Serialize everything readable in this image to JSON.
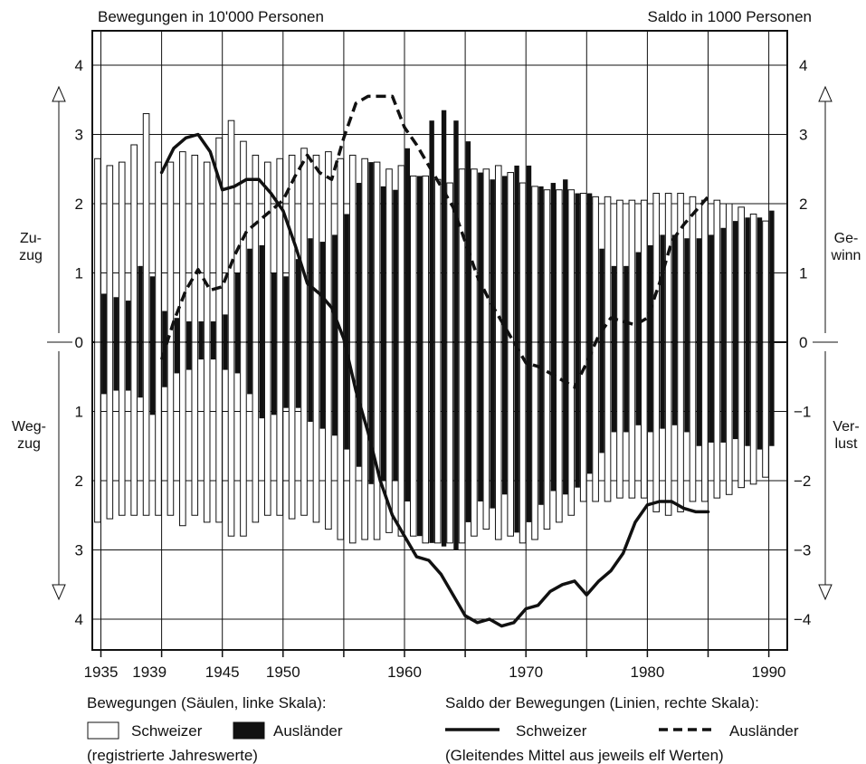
{
  "chart_data": {
    "type": "bar",
    "left_axis_label": "Bewegungen in 10'000 Personen",
    "right_axis_label": "Saldo in 1000 Personen",
    "left_ticks_up": [
      "4",
      "3",
      "2",
      "1"
    ],
    "left_ticks_down": [
      "1",
      "2",
      "3",
      "4"
    ],
    "zero_label": "0",
    "right_ticks": [
      "4",
      "3",
      "2",
      "1",
      "0",
      "−1",
      "−2",
      "−3",
      "−4"
    ],
    "left_upper_label": [
      "Zu-",
      "zug"
    ],
    "left_lower_label": [
      "Weg-",
      "zug"
    ],
    "right_upper_label": [
      "Ge-",
      "winn"
    ],
    "right_lower_label": [
      "Ver-",
      "lust"
    ],
    "x_tick_labels": [
      "1935",
      "1939",
      "1945",
      "1950",
      "1960",
      "1970",
      "1980",
      "1990"
    ],
    "x_tick_years": [
      1935,
      1939,
      1945,
      1950,
      1960,
      1970,
      1980,
      1990
    ],
    "xlim": [
      1935,
      1990.5
    ],
    "left_ylim": [
      -4.5,
      4.5
    ],
    "right_ylim": [
      -4.5,
      4.5
    ],
    "grid": true,
    "legend": {
      "bars_title": "Bewegungen (Säulen, linke Skala):",
      "bars_note": "(registrierte Jahreswerte)",
      "lines_title": "Saldo der Bewegungen (Linien, rechte Skala):",
      "lines_note": "(Gleitendes Mittel aus jeweils elf Werten)",
      "swiss": "Schweizer",
      "foreign": "Ausländer"
    },
    "years": [
      1935,
      1936,
      1937,
      1938,
      1939,
      1940,
      1941,
      1942,
      1943,
      1944,
      1945,
      1946,
      1947,
      1948,
      1949,
      1950,
      1951,
      1952,
      1953,
      1954,
      1955,
      1956,
      1957,
      1958,
      1959,
      1960,
      1961,
      1962,
      1963,
      1964,
      1965,
      1966,
      1967,
      1968,
      1969,
      1970,
      1971,
      1972,
      1973,
      1974,
      1975,
      1976,
      1977,
      1978,
      1979,
      1980,
      1981,
      1982,
      1983,
      1984,
      1985,
      1986,
      1987,
      1988,
      1989,
      1990
    ],
    "series": [
      {
        "name": "Schweizer",
        "kind": "bars",
        "scale": "left",
        "zuzug": [
          2.65,
          2.55,
          2.6,
          2.85,
          3.3,
          2.6,
          2.6,
          2.75,
          2.7,
          2.6,
          2.95,
          3.2,
          2.9,
          2.7,
          2.6,
          2.65,
          2.7,
          2.8,
          2.7,
          2.75,
          2.65,
          2.7,
          2.65,
          2.6,
          2.5,
          2.55,
          2.4,
          2.4,
          2.35,
          2.3,
          2.5,
          2.5,
          2.5,
          2.55,
          2.45,
          2.3,
          2.25,
          2.2,
          2.2,
          2.2,
          2.15,
          2.1,
          2.1,
          2.05,
          2.05,
          2.05,
          2.15,
          2.15,
          2.15,
          2.1,
          2.05,
          2.05,
          2.0,
          1.95,
          1.85,
          1.75
        ],
        "wegzug": [
          2.6,
          2.55,
          2.5,
          2.5,
          2.5,
          2.5,
          2.5,
          2.65,
          2.5,
          2.6,
          2.6,
          2.8,
          2.8,
          2.6,
          2.5,
          2.5,
          2.55,
          2.5,
          2.6,
          2.7,
          2.85,
          2.9,
          2.85,
          2.85,
          2.75,
          2.8,
          2.8,
          2.9,
          2.9,
          2.9,
          2.9,
          2.8,
          2.7,
          2.85,
          2.8,
          2.9,
          2.85,
          2.7,
          2.6,
          2.5,
          2.3,
          2.3,
          2.3,
          2.25,
          2.25,
          2.25,
          2.45,
          2.5,
          2.45,
          2.3,
          2.3,
          2.25,
          2.2,
          2.1,
          2.05,
          1.95
        ]
      },
      {
        "name": "Ausländer",
        "kind": "bars",
        "scale": "left",
        "zuzug": [
          0.7,
          0.65,
          0.6,
          1.1,
          0.95,
          0.45,
          0.35,
          0.3,
          0.3,
          0.3,
          0.4,
          1.0,
          1.35,
          1.4,
          1.0,
          0.95,
          1.2,
          1.5,
          1.45,
          1.55,
          1.85,
          2.3,
          2.6,
          2.25,
          2.2,
          2.8,
          2.4,
          3.2,
          3.35,
          3.2,
          2.9,
          2.45,
          2.35,
          2.4,
          2.55,
          2.55,
          2.25,
          2.3,
          2.35,
          2.15,
          2.15,
          1.35,
          1.1,
          1.1,
          1.3,
          1.4,
          1.55,
          1.55,
          1.5,
          1.5,
          1.55,
          1.65,
          1.75,
          1.8,
          1.8,
          1.9
        ],
        "wegzug": [
          0.75,
          0.7,
          0.7,
          0.8,
          1.05,
          0.65,
          0.45,
          0.4,
          0.25,
          0.25,
          0.4,
          0.45,
          0.75,
          1.1,
          1.05,
          0.95,
          0.95,
          1.15,
          1.25,
          1.35,
          1.55,
          1.8,
          2.05,
          2.0,
          2.0,
          2.3,
          2.8,
          2.9,
          2.95,
          3.0,
          2.6,
          2.3,
          2.4,
          2.2,
          2.75,
          2.6,
          2.35,
          2.15,
          2.2,
          2.1,
          1.9,
          1.6,
          1.3,
          1.3,
          1.2,
          1.3,
          1.25,
          1.2,
          1.3,
          1.5,
          1.45,
          1.45,
          1.4,
          1.5,
          1.55,
          1.5
        ]
      },
      {
        "name": "Schweizer",
        "kind": "line",
        "scale": "right",
        "x": [
          1940,
          1941,
          1942,
          1943,
          1944,
          1945,
          1946,
          1947,
          1948,
          1949,
          1950,
          1951,
          1952,
          1953,
          1954,
          1955,
          1956,
          1957,
          1958,
          1959,
          1960,
          1961,
          1962,
          1963,
          1964,
          1965,
          1966,
          1967,
          1968,
          1969,
          1970,
          1971,
          1972,
          1973,
          1974,
          1975,
          1976,
          1977,
          1978,
          1979,
          1980,
          1981,
          1982,
          1983,
          1984,
          1985
        ],
        "y": [
          2.45,
          2.8,
          2.95,
          3.0,
          2.75,
          2.2,
          2.25,
          2.35,
          2.35,
          2.15,
          1.9,
          1.4,
          0.85,
          0.7,
          0.5,
          0.05,
          -0.7,
          -1.3,
          -2.0,
          -2.5,
          -2.8,
          -3.1,
          -3.15,
          -3.35,
          -3.65,
          -3.95,
          -4.05,
          -4.0,
          -4.1,
          -4.05,
          -3.85,
          -3.8,
          -3.6,
          -3.5,
          -3.45,
          -3.65,
          -3.45,
          -3.3,
          -3.05,
          -2.6,
          -2.35,
          -2.3,
          -2.3,
          -2.4,
          -2.45,
          -2.45
        ]
      },
      {
        "name": "Ausländer",
        "kind": "line",
        "scale": "right",
        "x": [
          1940,
          1941,
          1942,
          1943,
          1944,
          1945,
          1946,
          1947,
          1948,
          1949,
          1950,
          1951,
          1952,
          1953,
          1954,
          1955,
          1956,
          1957,
          1958,
          1959,
          1960,
          1961,
          1962,
          1963,
          1964,
          1965,
          1966,
          1967,
          1968,
          1969,
          1970,
          1971,
          1972,
          1973,
          1974,
          1975,
          1976,
          1977,
          1978,
          1979,
          1980,
          1981,
          1982,
          1983,
          1984,
          1985
        ],
        "y": [
          -0.25,
          0.3,
          0.75,
          1.05,
          0.75,
          0.8,
          1.25,
          1.6,
          1.75,
          1.9,
          2.05,
          2.4,
          2.7,
          2.45,
          2.35,
          2.95,
          3.45,
          3.55,
          3.55,
          3.55,
          3.1,
          2.85,
          2.55,
          2.25,
          1.95,
          1.45,
          0.95,
          0.6,
          0.3,
          0.0,
          -0.3,
          -0.35,
          -0.45,
          -0.55,
          -0.65,
          -0.3,
          0.1,
          0.35,
          0.3,
          0.25,
          0.35,
          0.85,
          1.45,
          1.7,
          1.9,
          2.1
        ]
      }
    ]
  }
}
